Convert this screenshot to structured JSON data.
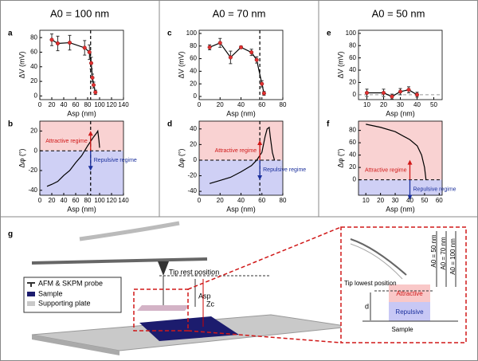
{
  "chart_data": [
    {
      "type": "line",
      "panel": "a",
      "title": "A0 = 100 nm",
      "xlabel": "Asp (nm)",
      "ylabel": "ΔV (mV)",
      "xlim": [
        0,
        140
      ],
      "ylim": [
        -5,
        90
      ],
      "xticks": [
        0,
        20,
        40,
        60,
        80,
        100,
        120,
        140
      ],
      "yticks": [
        0,
        20,
        40,
        60,
        80
      ],
      "x": [
        20,
        30,
        50,
        75,
        83,
        86,
        88,
        90,
        93
      ],
      "series": [
        {
          "color": "#e03030",
          "values": [
            77,
            72,
            73,
            66,
            60,
            45,
            25,
            15,
            5
          ],
          "errors": [
            8,
            10,
            10,
            10,
            10,
            8,
            5,
            4,
            3
          ]
        }
      ],
      "vline": 85
    },
    {
      "type": "line",
      "panel": "b",
      "xlabel": "Asp (nm)",
      "ylabel": "Δφ (°)",
      "xlim": [
        0,
        140
      ],
      "ylim": [
        -45,
        30
      ],
      "xticks": [
        0,
        20,
        40,
        60,
        80,
        100,
        120,
        140
      ],
      "yticks": [
        -40,
        -20,
        0,
        20
      ],
      "x": [
        12,
        20,
        30,
        40,
        50,
        60,
        70,
        80,
        90,
        95,
        97,
        99,
        100
      ],
      "series": [
        {
          "color": "#000000",
          "values": [
            -36,
            -34,
            -31,
            -25,
            -20,
            -12,
            -5,
            5,
            14,
            18,
            20,
            10,
            3
          ]
        }
      ],
      "vline": 85,
      "hline": 0,
      "shade": [
        "#f9d2d2",
        "#cfd0f5"
      ],
      "annotations": [
        {
          "text": "Attractive regime",
          "color": "#d01818"
        },
        {
          "text": "Repulsive regime",
          "color": "#1a2f9c"
        }
      ]
    },
    {
      "type": "line",
      "panel": "c",
      "title": "A0 = 70 nm",
      "xlabel": "Asp (nm)",
      "ylabel": "ΔV (mV)",
      "xlim": [
        0,
        80
      ],
      "ylim": [
        -5,
        105
      ],
      "xticks": [
        0,
        20,
        40,
        60,
        80
      ],
      "yticks": [
        0,
        20,
        40,
        60,
        80,
        100
      ],
      "x": [
        10,
        20,
        30,
        40,
        50,
        55,
        60,
        62
      ],
      "series": [
        {
          "color": "#e03030",
          "values": [
            78,
            85,
            62,
            78,
            70,
            58,
            20,
            5
          ],
          "errors": [
            4,
            7,
            10,
            2,
            5,
            5,
            5,
            3
          ]
        }
      ],
      "vline": 58
    },
    {
      "type": "line",
      "panel": "d",
      "xlabel": "Asp (nm)",
      "ylabel": "Δφ (°)",
      "xlim": [
        0,
        80
      ],
      "ylim": [
        -45,
        50
      ],
      "xticks": [
        0,
        20,
        40,
        60,
        80
      ],
      "yticks": [
        -40,
        -20,
        0,
        20,
        40
      ],
      "x": [
        10,
        20,
        30,
        40,
        50,
        55,
        60,
        63,
        65,
        67,
        68,
        70,
        72
      ],
      "series": [
        {
          "color": "#000000",
          "values": [
            -30,
            -26,
            -22,
            -15,
            -7,
            0,
            10,
            30,
            40,
            42,
            30,
            10,
            0
          ]
        }
      ],
      "vline": 58,
      "hline": 0,
      "shade": [
        "#f9d2d2",
        "#cfd0f5"
      ],
      "annotations": [
        {
          "text": "Attractive regime",
          "color": "#d01818"
        },
        {
          "text": "Repulsive regime",
          "color": "#1a2f9c"
        }
      ]
    },
    {
      "type": "line",
      "panel": "e",
      "title": "A0 = 50 nm",
      "xlabel": "Asp (nm)",
      "ylabel": "ΔV (mV)",
      "xlim": [
        5,
        55
      ],
      "ylim": [
        -8,
        105
      ],
      "xticks": [
        10,
        20,
        30,
        40,
        50
      ],
      "yticks": [
        0,
        20,
        40,
        60,
        80,
        100
      ],
      "x": [
        10,
        20,
        25,
        30,
        35,
        40
      ],
      "series": [
        {
          "color": "#e03030",
          "values": [
            3,
            3,
            -3,
            5,
            8,
            0
          ],
          "errors": [
            6,
            6,
            4,
            5,
            5,
            4
          ]
        }
      ],
      "hline": 0
    },
    {
      "type": "line",
      "panel": "f",
      "xlabel": "Asp (nm)",
      "ylabel": "Δφ (°)",
      "xlim": [
        5,
        62
      ],
      "ylim": [
        -25,
        95
      ],
      "xticks": [
        10,
        20,
        30,
        40,
        50,
        60
      ],
      "yticks": [
        0,
        20,
        40,
        60,
        80
      ],
      "x": [
        10,
        20,
        30,
        40,
        45,
        48,
        50,
        51
      ],
      "series": [
        {
          "color": "#000000",
          "values": [
            90,
            85,
            78,
            65,
            55,
            40,
            20,
            0
          ]
        }
      ],
      "hline": 0,
      "shade": [
        "#f9d2d2",
        "#cfd0f5"
      ],
      "annotations": [
        {
          "text": "Attractive regime",
          "color": "#d01818"
        },
        {
          "text": "Repulsive regime",
          "color": "#1a2f9c"
        }
      ]
    }
  ],
  "diagram": {
    "panel": "g",
    "tip_rest": "Tip rest position",
    "asp": "Asp",
    "zc": "Zc",
    "legend": [
      "AFM & SKPM probe",
      "Sample",
      "Supporting plate"
    ],
    "inset": {
      "amplitudes": [
        "A0 = 50 nm",
        "A0 = 70 nm",
        "A0 = 100 nm"
      ],
      "tip_lowest": "Tip lowest position",
      "attractive": "Attractive",
      "repulsive": "Repulsive",
      "d": "d",
      "sample": "Sample"
    }
  }
}
